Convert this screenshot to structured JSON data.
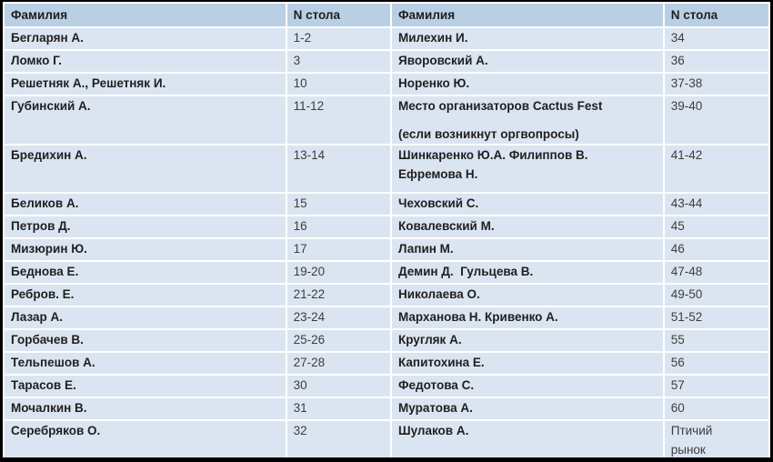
{
  "table": {
    "colors": {
      "header_bg": "#b9d0e4",
      "row_bg": "#dbe5f1",
      "frame_border": "#000000"
    },
    "headers": [
      "Фамилия",
      "N стола",
      "Фамилия",
      "N стола"
    ],
    "rows": [
      {
        "cells": [
          "Бегларян А.",
          "1-2",
          "Милехин И.",
          "34"
        ]
      },
      {
        "cells": [
          "Ломко Г.",
          "3",
          "Яворовский А.",
          "36"
        ]
      },
      {
        "cells": [
          "Решетняк А., Решетняк И.",
          "10",
          "Норенко Ю.",
          "37-38"
        ]
      },
      {
        "tall": true,
        "cells": [
          "Губинский А.",
          "11-12",
          {
            "lines": [
              "Место организаторов Cactus Fest",
              "(если возникнут оргвопросы)"
            ],
            "gap": "para"
          },
          "39-40"
        ]
      },
      {
        "tall": true,
        "cells": [
          "Бредихин А.",
          "13-14",
          {
            "lines": [
              "Шинкаренко Ю.А. Филиппов В.",
              "Ефремова Н."
            ],
            "gap": "wrap"
          },
          "41-42"
        ]
      },
      {
        "cells": [
          "Беликов А.",
          "15",
          "Чеховский С.",
          "43-44"
        ]
      },
      {
        "cells": [
          "Петров Д.",
          "16",
          "Ковалевский М.",
          "45"
        ]
      },
      {
        "cells": [
          "Мизюрин Ю.",
          "17",
          "Лапин М.",
          "46"
        ]
      },
      {
        "cells": [
          "Беднова Е.",
          "19-20",
          "Демин Д.  Гульцева В.",
          "47-48"
        ]
      },
      {
        "cells": [
          "Ребров. Е.",
          "21-22",
          "Николаева О.",
          "49-50"
        ]
      },
      {
        "cells": [
          "Лазар А.",
          "23-24",
          "Марханова Н. Кривенко А.",
          "51-52"
        ]
      },
      {
        "cells": [
          "Горбачев В.",
          "25-26",
          "Кругляк А.",
          "55"
        ]
      },
      {
        "cells": [
          "Тельпешов А.",
          "27-28",
          "Капитохина Е.",
          "56"
        ]
      },
      {
        "cells": [
          "Тарасов Е.",
          "30",
          "Федотова С.",
          "57"
        ]
      },
      {
        "cells": [
          "Мочалкин В.",
          "31",
          "Муратова А.",
          "60"
        ]
      },
      {
        "last": true,
        "cells": [
          "Серебряков О.",
          "32",
          "Шулаков А.",
          {
            "lines": [
              "Птичий",
              "рынок"
            ],
            "gap": "wrap"
          }
        ]
      }
    ]
  }
}
